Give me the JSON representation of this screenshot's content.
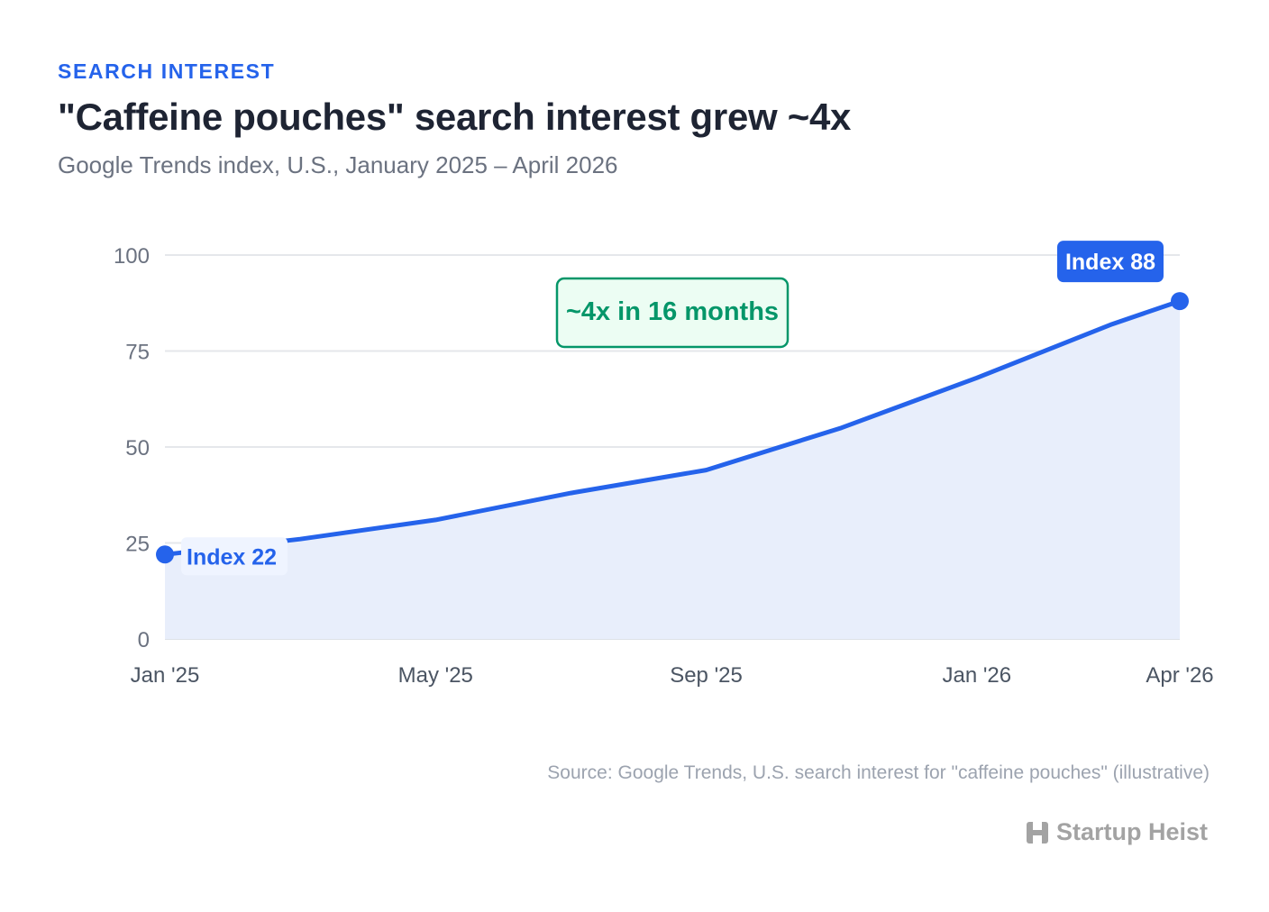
{
  "header": {
    "eyebrow": "SEARCH INTEREST",
    "title": "\"Caffeine pouches\" search interest grew ~4x",
    "subtitle": "Google Trends index, U.S., January 2025 – April 2026"
  },
  "chart_data": {
    "type": "area",
    "title": "\"Caffeine pouches\" search interest grew ~4x",
    "subtitle": "Google Trends index, U.S., January 2025 – April 2026",
    "xlabel": "",
    "ylabel": "",
    "x": [
      "2025-01",
      "2025-03",
      "2025-05",
      "2025-07",
      "2025-09",
      "2025-11",
      "2026-01",
      "2026-03",
      "2026-04"
    ],
    "x_tick_labels": [
      {
        "x": "2025-01",
        "label": "Jan '25"
      },
      {
        "x": "2025-05",
        "label": "May '25"
      },
      {
        "x": "2025-09",
        "label": "Sep '25"
      },
      {
        "x": "2026-01",
        "label": "Jan '26"
      },
      {
        "x": "2026-04",
        "label": "Apr '26"
      }
    ],
    "series": [
      {
        "values": [
          22,
          26,
          31,
          38,
          44,
          55,
          68,
          82,
          88
        ],
        "color": "#2563eb",
        "fill": "#e8eefb"
      }
    ],
    "ylim": [
      0,
      100
    ],
    "y_ticks": [
      0,
      25,
      50,
      75,
      100
    ],
    "grid": true,
    "annotations": [
      {
        "type": "label",
        "x": "2025-01",
        "y": 22,
        "text": "Index 22",
        "style": "light"
      },
      {
        "type": "label",
        "x": "2026-04",
        "y": 88,
        "text": "Index 88",
        "style": "solid"
      },
      {
        "type": "callout",
        "text": "~4x in 16 months",
        "color": "#059669"
      }
    ]
  },
  "footer": {
    "source": "Source: Google Trends, U.S. search interest for \"caffeine pouches\" (illustrative)",
    "brand": "Startup Heist"
  },
  "colors": {
    "accent": "#2563eb",
    "area_fill": "#e8eefb",
    "callout": "#059669",
    "callout_bg": "#ecfdf3",
    "grid": "#e5e7eb",
    "muted_text": "#6b7280"
  },
  "icons": {
    "brand": "startup-heist-logo-icon"
  }
}
